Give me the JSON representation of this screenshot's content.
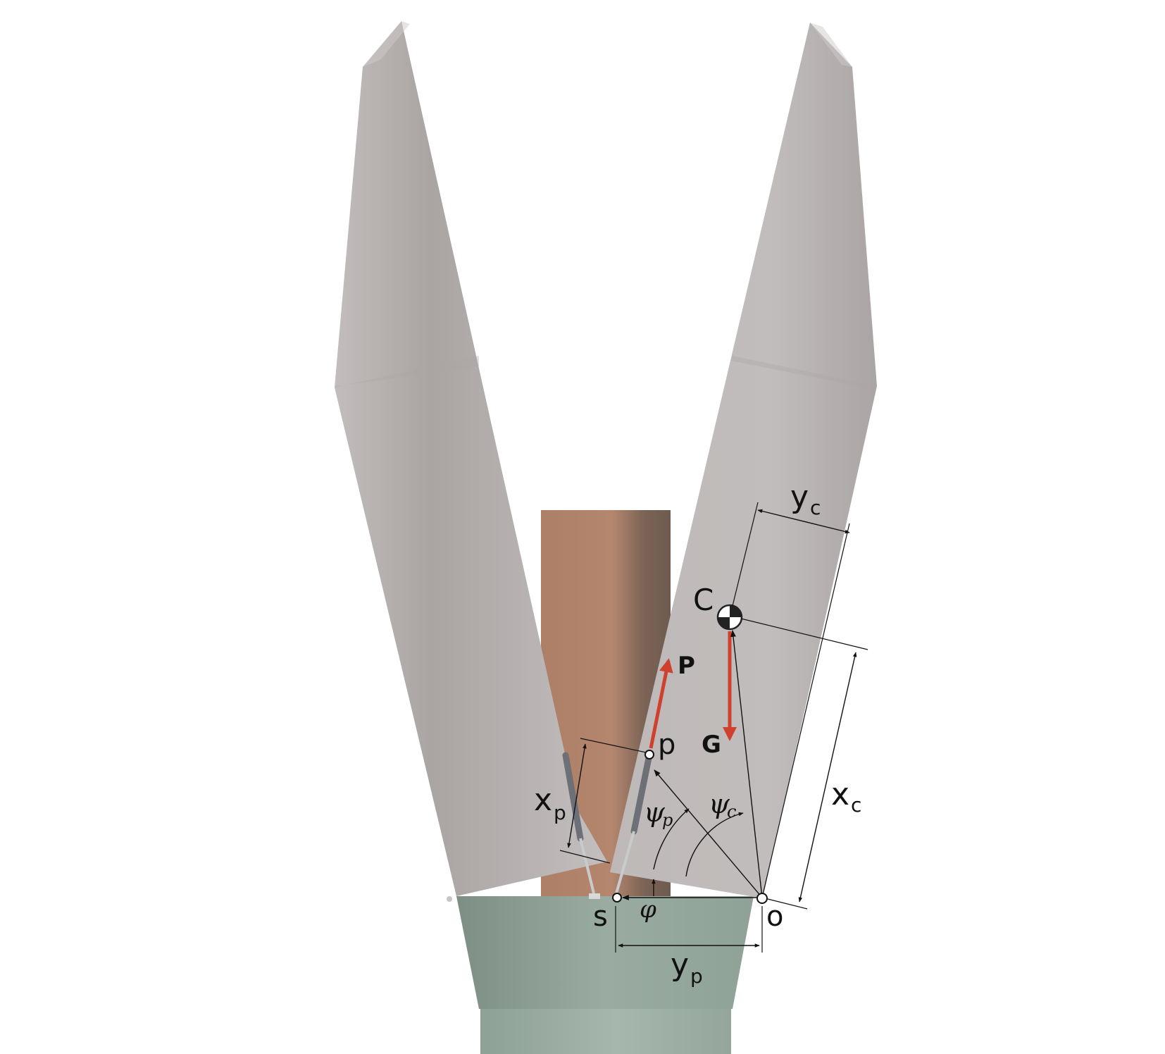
{
  "diagram": {
    "colors": {
      "blade": "#bbb6b5",
      "blade_shade": "#9c9695",
      "handle": "#93a69c",
      "handle_dark": "#7d8e85",
      "object": "#b0836b",
      "object_shadow": "#765f53",
      "force_arrow": "#d0402f",
      "piston": "#6e7078",
      "rod": "#c9cacc",
      "line": "#111111"
    },
    "points": {
      "s": "s",
      "o": "o",
      "p": "p",
      "C": "C"
    },
    "forces": {
      "P": "P",
      "G": "G"
    },
    "dimensions": {
      "x_p": {
        "main": "x",
        "sub": "p"
      },
      "y_p": {
        "main": "y",
        "sub": "p"
      },
      "x_c": {
        "main": "x",
        "sub": "c"
      },
      "y_c": {
        "main": "y",
        "sub": "c"
      }
    },
    "angles": {
      "psi_p": {
        "main": "ψ",
        "sub": "p"
      },
      "psi_c": {
        "main": "ψ",
        "sub": "c"
      },
      "phi": "φ"
    }
  }
}
